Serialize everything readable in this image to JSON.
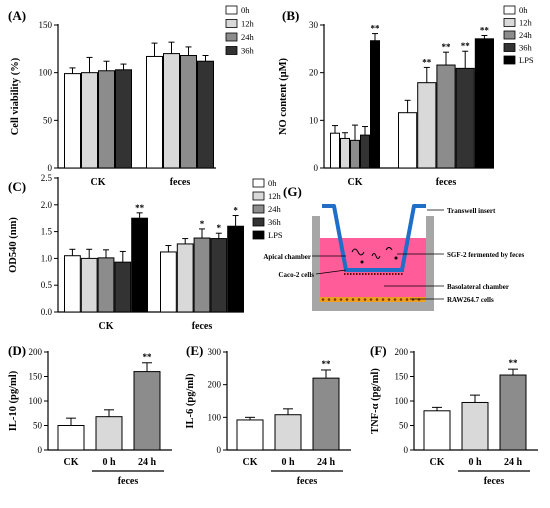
{
  "chart_data": [
    {
      "id": "A",
      "panel_label": "(A)",
      "type": "bar",
      "ylabel": "Cell viability (%)",
      "ylim": [
        0,
        150
      ],
      "yticks": [
        0,
        50,
        100,
        150
      ],
      "categories": [
        "CK",
        "feces"
      ],
      "legend_position": "top-right",
      "series": [
        {
          "name": "0h",
          "color": "#ffffff",
          "values": [
            99,
            117
          ],
          "errors": [
            6,
            14
          ]
        },
        {
          "name": "12h",
          "color": "#d9d9d9",
          "values": [
            100,
            120
          ],
          "errors": [
            16,
            12
          ]
        },
        {
          "name": "24h",
          "color": "#8c8c8c",
          "values": [
            102,
            118
          ],
          "errors": [
            10,
            9
          ]
        },
        {
          "name": "36h",
          "color": "#333333",
          "values": [
            103,
            112
          ],
          "errors": [
            6,
            6
          ]
        }
      ],
      "significance": [
        [
          "",
          ""
        ],
        [
          "",
          ""
        ],
        [
          "",
          ""
        ],
        [
          "",
          ""
        ]
      ]
    },
    {
      "id": "B",
      "panel_label": "(B)",
      "type": "bar",
      "ylabel": "NO content (μM)",
      "ylim": [
        0,
        30
      ],
      "yticks": [
        0,
        10,
        20,
        30
      ],
      "categories": [
        "CK",
        "feces"
      ],
      "legend_position": "top-right",
      "series": [
        {
          "name": "0h",
          "color": "#ffffff",
          "values": [
            7.3,
            11.6
          ],
          "errors": [
            1.6,
            2.6
          ]
        },
        {
          "name": "12h",
          "color": "#d9d9d9",
          "values": [
            6.2,
            17.9
          ],
          "errors": [
            1.2,
            3.2
          ]
        },
        {
          "name": "24h",
          "color": "#8c8c8c",
          "values": [
            5.8,
            21.6
          ],
          "errors": [
            3.2,
            2.7
          ]
        },
        {
          "name": "36h",
          "color": "#333333",
          "values": [
            6.9,
            20.9
          ],
          "errors": [
            1.8,
            3.6
          ]
        },
        {
          "name": "LPS",
          "color": "#000000",
          "values": [
            26.7,
            27.1
          ],
          "errors": [
            1.5,
            0.7
          ]
        }
      ],
      "significance": [
        [
          "",
          ""
        ],
        [
          "",
          "**"
        ],
        [
          "",
          "**"
        ],
        [
          "",
          "**"
        ],
        [
          "**",
          "**"
        ]
      ]
    },
    {
      "id": "C",
      "panel_label": "(C)",
      "type": "bar",
      "ylabel": "OD540 (nm)",
      "ylim": [
        0,
        2.5
      ],
      "yticks": [
        0.0,
        0.5,
        1.0,
        1.5,
        2.0,
        2.5
      ],
      "categories": [
        "CK",
        "feces"
      ],
      "legend_position": "top-right",
      "series": [
        {
          "name": "0h",
          "color": "#ffffff",
          "values": [
            1.05,
            1.12
          ],
          "errors": [
            0.12,
            0.12
          ]
        },
        {
          "name": "12h",
          "color": "#d9d9d9",
          "values": [
            1.0,
            1.27
          ],
          "errors": [
            0.17,
            0.1
          ]
        },
        {
          "name": "24h",
          "color": "#8c8c8c",
          "values": [
            1.01,
            1.38
          ],
          "errors": [
            0.15,
            0.17
          ]
        },
        {
          "name": "36h",
          "color": "#333333",
          "values": [
            0.93,
            1.37
          ],
          "errors": [
            0.2,
            0.1
          ]
        },
        {
          "name": "LPS",
          "color": "#000000",
          "values": [
            1.75,
            1.6
          ],
          "errors": [
            0.1,
            0.2
          ]
        }
      ],
      "significance": [
        [
          "",
          ""
        ],
        [
          "",
          ""
        ],
        [
          "",
          "*"
        ],
        [
          "",
          "*"
        ],
        [
          "**",
          "*"
        ]
      ]
    },
    {
      "id": "D",
      "panel_label": "(D)",
      "type": "bar",
      "ylabel": "IL-10 (pg/ml)",
      "ylim": [
        0,
        200
      ],
      "yticks": [
        0,
        50,
        100,
        150,
        200
      ],
      "ytick_labels": [
        "0",
        "50",
        "100",
        "150",
        "200"
      ],
      "categories": [
        "CK",
        "0 h",
        "24 h"
      ],
      "group_label": "feces",
      "values": [
        50,
        68,
        160
      ],
      "errors": [
        15,
        14,
        18
      ],
      "colors": [
        "#ffffff",
        "#d9d9d9",
        "#8c8c8c"
      ],
      "significance": [
        "",
        "",
        "**"
      ]
    },
    {
      "id": "E",
      "panel_label": "(E)",
      "type": "bar",
      "ylabel": "IL-6 (pg/ml)",
      "ylim": [
        0,
        300
      ],
      "yticks": [
        0,
        100,
        200,
        300
      ],
      "ytick_labels": [
        "0",
        "100",
        "200",
        "300"
      ],
      "categories": [
        "CK",
        "0 h",
        "24 h"
      ],
      "group_label": "feces",
      "values": [
        92,
        108,
        220
      ],
      "errors": [
        8,
        18,
        25
      ],
      "colors": [
        "#ffffff",
        "#d9d9d9",
        "#8c8c8c"
      ],
      "significance": [
        "",
        "",
        "**"
      ]
    },
    {
      "id": "F",
      "panel_label": "(F)",
      "type": "bar",
      "ylabel": "TNF-α (pg/ml)",
      "ylim": [
        0,
        200
      ],
      "yticks": [
        0,
        50,
        100,
        150,
        200
      ],
      "ytick_labels": [
        "0",
        "50",
        "100",
        "150",
        "200"
      ],
      "categories": [
        "CK",
        "0 h",
        "24 h"
      ],
      "group_label": "feces",
      "values": [
        80,
        97,
        153
      ],
      "errors": [
        7,
        15,
        12
      ],
      "colors": [
        "#ffffff",
        "#d9d9d9",
        "#8c8c8c"
      ],
      "significance": [
        "",
        "",
        "**"
      ]
    }
  ],
  "diagram": {
    "panel_label": "(G)",
    "labels": {
      "transwell": "Transwell insert",
      "sgf": "SGF-2 fermented by feces",
      "apical": "Apical chamber",
      "caco": "Caco-2 cells",
      "basolateral": "Basolateral chamber",
      "raw": "RAW264.7 cells"
    },
    "colors": {
      "medium": "#ff5c99",
      "insert": "#1f6fc8",
      "wall": "#a6a6a6",
      "cells_raw": "#f0a020",
      "cells_caco": "#d42020"
    }
  }
}
